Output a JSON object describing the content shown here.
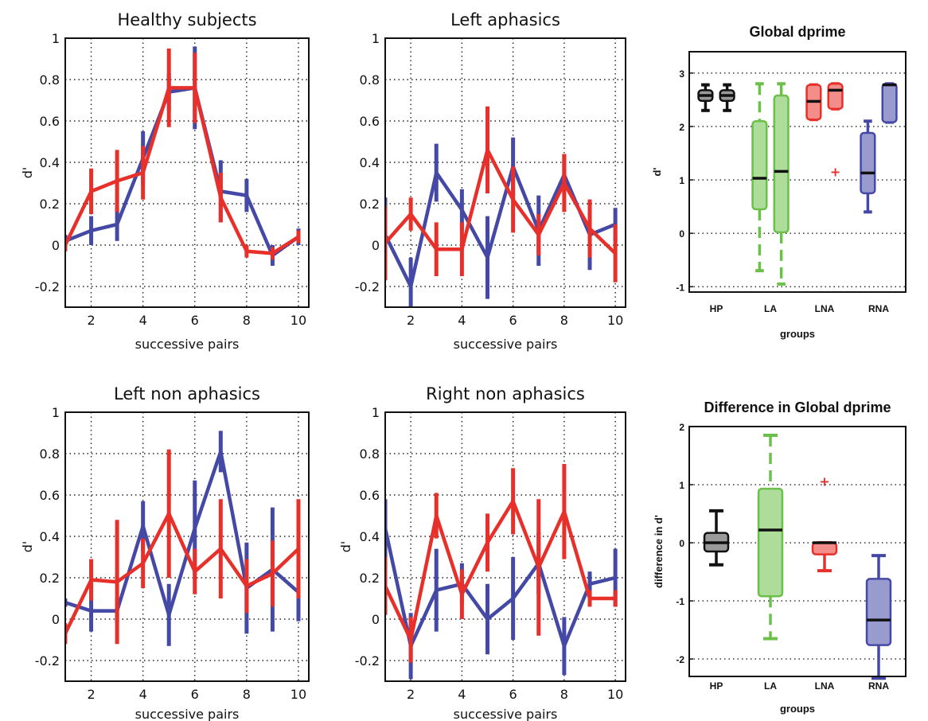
{
  "colors": {
    "red": "#e8302b",
    "blue": "#4549a6",
    "black": "#111111",
    "green": "#6cc04a"
  },
  "chart_data": [
    {
      "type": "line",
      "title": "Healthy subjects",
      "xlabel": "successive pairs",
      "ylabel": "d'",
      "xlim": [
        1,
        10.4
      ],
      "ylim": [
        -0.3,
        1.0
      ],
      "xticks": [
        "2",
        "4",
        "6",
        "8",
        "10"
      ],
      "yticks": [
        "-0.2",
        "0",
        "0.2",
        "0.4",
        "0.6",
        "0.8",
        "1"
      ],
      "series": [
        {
          "color": "blue",
          "x": [
            1,
            2,
            3,
            4,
            5,
            6,
            7,
            8,
            9,
            10
          ],
          "y": [
            0.02,
            0.07,
            0.1,
            0.42,
            0.74,
            0.76,
            0.26,
            0.24,
            -0.05,
            0.04
          ],
          "err": [
            0.03,
            0.07,
            0.08,
            0.13,
            0.09,
            0.2,
            0.15,
            0.08,
            0.05,
            0.04
          ]
        },
        {
          "color": "red",
          "x": [
            1,
            2,
            3,
            4,
            5,
            6,
            7,
            8,
            9,
            10
          ],
          "y": [
            0.0,
            0.26,
            0.31,
            0.35,
            0.76,
            0.76,
            0.23,
            -0.03,
            -0.04,
            0.04
          ],
          "err": [
            0.03,
            0.11,
            0.15,
            0.13,
            0.19,
            0.17,
            0.12,
            0.03,
            0.03,
            0.03
          ]
        }
      ]
    },
    {
      "type": "line",
      "title": "Left aphasics",
      "xlabel": "successive pairs",
      "ylabel": "",
      "xlim": [
        1,
        10.4
      ],
      "ylim": [
        -0.3,
        1.0
      ],
      "xticks": [
        "2",
        "4",
        "6",
        "8",
        "10"
      ],
      "yticks": [
        "-0.2",
        "0",
        "0.2",
        "0.4",
        "0.6",
        "0.8",
        "1"
      ],
      "series": [
        {
          "color": "blue",
          "x": [
            1,
            2,
            3,
            4,
            5,
            6,
            7,
            8,
            9,
            10
          ],
          "y": [
            0.05,
            -0.2,
            0.35,
            0.17,
            -0.06,
            0.38,
            0.07,
            0.34,
            0.05,
            0.1
          ],
          "err": [
            0.18,
            0.14,
            0.14,
            0.1,
            0.2,
            0.14,
            0.17,
            0.1,
            0.17,
            0.08
          ]
        },
        {
          "color": "red",
          "x": [
            1,
            2,
            3,
            4,
            5,
            6,
            7,
            8,
            9,
            10
          ],
          "y": [
            0.01,
            0.15,
            -0.02,
            -0.02,
            0.46,
            0.22,
            0.05,
            0.3,
            0.08,
            -0.04
          ],
          "err": [
            0.18,
            0.08,
            0.13,
            0.13,
            0.21,
            0.16,
            0.1,
            0.14,
            0.14,
            0.14
          ]
        }
      ]
    },
    {
      "type": "line",
      "title": "Left non aphasics",
      "xlabel": "successive pairs",
      "ylabel": "d'",
      "xlim": [
        1,
        10.4
      ],
      "ylim": [
        -0.3,
        1.0
      ],
      "xticks": [
        "2",
        "4",
        "6",
        "8",
        "10"
      ],
      "yticks": [
        "-0.2",
        "0",
        "0.2",
        "0.4",
        "0.6",
        "0.8",
        "1"
      ],
      "series": [
        {
          "color": "blue",
          "x": [
            1,
            2,
            3,
            4,
            5,
            6,
            7,
            8,
            9,
            10
          ],
          "y": [
            0.08,
            0.04,
            0.04,
            0.45,
            0.02,
            0.44,
            0.81,
            0.15,
            0.24,
            0.13
          ],
          "err": [
            0.02,
            0.1,
            0.06,
            0.12,
            0.15,
            0.23,
            0.1,
            0.22,
            0.3,
            0.14
          ]
        },
        {
          "color": "red",
          "x": [
            1,
            2,
            3,
            4,
            5,
            6,
            7,
            8,
            9,
            10
          ],
          "y": [
            -0.07,
            0.19,
            0.18,
            0.27,
            0.51,
            0.23,
            0.34,
            0.16,
            0.22,
            0.34
          ],
          "err": [
            0.05,
            0.1,
            0.3,
            0.12,
            0.31,
            0.11,
            0.24,
            0.13,
            0.16,
            0.24
          ]
        }
      ]
    },
    {
      "type": "line",
      "title": "Right non aphasics",
      "xlabel": "successive pairs",
      "ylabel": "d'",
      "xlim": [
        1,
        10.4
      ],
      "ylim": [
        -0.3,
        1.0
      ],
      "xticks": [
        "2",
        "4",
        "6",
        "8",
        "10"
      ],
      "yticks": [
        "-0.2",
        "0",
        "0.2",
        "0.4",
        "0.6",
        "0.8",
        "1"
      ],
      "series": [
        {
          "color": "blue",
          "x": [
            1,
            2,
            3,
            4,
            5,
            6,
            7,
            8,
            9,
            10
          ],
          "y": [
            0.44,
            -0.13,
            0.14,
            0.17,
            0.0,
            0.1,
            0.27,
            -0.13,
            0.17,
            0.2
          ],
          "err": [
            0.14,
            0.16,
            0.2,
            0.1,
            0.17,
            0.2,
            0.15,
            0.14,
            0.06,
            0.14
          ]
        },
        {
          "color": "red",
          "x": [
            1,
            2,
            3,
            4,
            5,
            6,
            7,
            8,
            9,
            10
          ],
          "y": [
            0.16,
            -0.1,
            0.5,
            0.12,
            0.37,
            0.57,
            0.25,
            0.52,
            0.1,
            0.1
          ],
          "err": [
            0.14,
            0.11,
            0.11,
            0.12,
            0.14,
            0.16,
            0.33,
            0.23,
            0.04,
            0.04
          ]
        }
      ]
    },
    {
      "type": "box",
      "title": "Global dprime",
      "xlabel": "groups",
      "ylabel": "d'",
      "ylim": [
        -1.1,
        3.4
      ],
      "yticks": [
        "-1",
        "0",
        "1",
        "2",
        "3"
      ],
      "groups": [
        "HP",
        "LA",
        "LNA",
        "RNA"
      ],
      "boxes": [
        {
          "group": "HP",
          "color": "black",
          "q1": 2.48,
          "median": 2.58,
          "q3": 2.68,
          "lower": 2.3,
          "upper": 2.78,
          "outliers": []
        },
        {
          "group": "HP",
          "color": "black",
          "q1": 2.48,
          "median": 2.58,
          "q3": 2.68,
          "lower": 2.3,
          "upper": 2.78,
          "outliers": []
        },
        {
          "group": "LA",
          "color": "green",
          "q1": 0.45,
          "median": 1.03,
          "q3": 2.1,
          "lower": -0.7,
          "upper": 2.8,
          "outliers": []
        },
        {
          "group": "LA",
          "color": "green",
          "q1": 0.02,
          "median": 1.16,
          "q3": 2.58,
          "lower": -0.95,
          "upper": 2.8,
          "outliers": []
        },
        {
          "group": "LNA",
          "color": "red",
          "q1": 2.13,
          "median": 2.47,
          "q3": 2.78,
          "lower": 2.13,
          "upper": 2.78,
          "outliers": []
        },
        {
          "group": "LNA",
          "color": "red",
          "q1": 2.33,
          "median": 2.68,
          "q3": 2.8,
          "lower": 2.33,
          "upper": 2.8,
          "outliers": [
            1.14
          ]
        },
        {
          "group": "RNA",
          "color": "blue",
          "q1": 0.75,
          "median": 1.13,
          "q3": 1.88,
          "lower": 0.4,
          "upper": 2.1,
          "outliers": []
        },
        {
          "group": "RNA",
          "color": "blue",
          "q1": 2.08,
          "median": 2.78,
          "q3": 2.8,
          "lower": 2.08,
          "upper": 2.8,
          "outliers": []
        }
      ]
    },
    {
      "type": "box",
      "title": "Difference in Global dprime",
      "xlabel": "groups",
      "ylabel": "difference in d'",
      "ylim": [
        -2.3,
        2.0
      ],
      "yticks": [
        "-2",
        "-1",
        "0",
        "1",
        "2"
      ],
      "groups": [
        "HP",
        "LA",
        "LNA",
        "RNA"
      ],
      "boxes": [
        {
          "group": "HP",
          "color": "black",
          "q1": -0.15,
          "median": 0.0,
          "q3": 0.17,
          "lower": -0.38,
          "upper": 0.55,
          "outliers": []
        },
        {
          "group": "LA",
          "color": "green",
          "q1": -0.92,
          "median": 0.22,
          "q3": 0.93,
          "lower": -1.65,
          "upper": 1.85,
          "outliers": []
        },
        {
          "group": "LNA",
          "color": "red",
          "q1": -0.2,
          "median": 0.0,
          "q3": 0.0,
          "lower": -0.48,
          "upper": 0.0,
          "outliers": [
            1.05
          ]
        },
        {
          "group": "RNA",
          "color": "blue",
          "q1": -1.76,
          "median": -1.33,
          "q3": -0.62,
          "lower": -2.33,
          "upper": -0.22,
          "outliers": []
        }
      ]
    }
  ]
}
